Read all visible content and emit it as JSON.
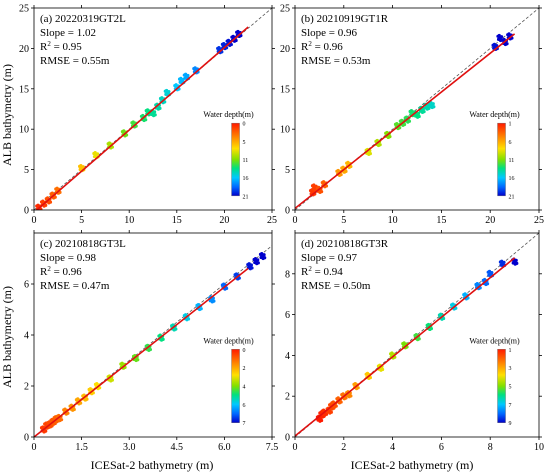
{
  "figure": {
    "xlabel": "ICESat-2 bathymetry (m)",
    "ylabel": "ALB bathymetry (m)"
  },
  "colors": {
    "fit_line": "#e01010",
    "identity_line": "#555555",
    "colormap": [
      "#0000cc",
      "#0066ff",
      "#00c8ff",
      "#00e080",
      "#80e000",
      "#ffe000",
      "#ff8000",
      "#ff1a00"
    ]
  },
  "chart_data": [
    {
      "type": "scatter",
      "panel_label": "(a) 20220319GT2L",
      "slope_text": "Slope = 1.02",
      "r2_prefix": "R",
      "r2_sup": "2",
      "r2_value": " = 0.95",
      "rmse_text": "RMSE = 0.55m",
      "xlim": [
        0,
        25
      ],
      "ylim": [
        0,
        25
      ],
      "xticks": [
        "0",
        "5",
        "10",
        "15",
        "20",
        "25"
      ],
      "yticks": [
        "0",
        "5",
        "10",
        "15",
        "20",
        "25"
      ],
      "fit": {
        "slope": 1.02,
        "intercept": -0.3
      },
      "legend_title": "Water depth(m)",
      "colorbar_ticks": [
        "0",
        "5",
        "11",
        "16",
        "21"
      ],
      "colorbar_range": [
        0,
        21
      ],
      "series": [
        {
          "x": [
            0.5,
            1.0,
            1.5,
            2.0,
            2.5,
            5.0,
            6.5,
            8.0,
            9.5,
            10.5,
            11.5,
            12.0,
            12.5,
            13.0,
            13.5,
            14.0,
            15.0,
            15.5,
            16.0,
            17.0,
            19.5,
            20.0,
            20.5,
            21.0,
            21.5
          ],
          "y": [
            0.3,
            0.8,
            1.2,
            1.8,
            2.4,
            5.2,
            6.8,
            8.0,
            9.5,
            10.6,
            11.4,
            12.1,
            12.0,
            12.8,
            13.6,
            14.5,
            15.2,
            16.0,
            16.5,
            17.3,
            19.8,
            20.3,
            20.7,
            21.2,
            21.8
          ]
        }
      ]
    },
    {
      "type": "scatter",
      "panel_label": "(b) 20210919GT1R",
      "slope_text": "Slope = 0.96",
      "r2_prefix": "R",
      "r2_sup": "2",
      "r2_value": " = 0.96",
      "rmse_text": "RMSE = 0.53m",
      "xlim": [
        0,
        25
      ],
      "ylim": [
        0,
        25
      ],
      "xticks": [
        "0",
        "5",
        "10",
        "15",
        "20",
        "25"
      ],
      "yticks": [
        "0",
        "5",
        "10",
        "15",
        "20",
        "25"
      ],
      "fit": {
        "slope": 0.96,
        "intercept": 0.2
      },
      "legend_title": "Water depth(m)",
      "colorbar_ticks": [
        "1",
        "6",
        "11",
        "16",
        "21"
      ],
      "colorbar_range": [
        1,
        21
      ],
      "series": [
        {
          "x": [
            1.8,
            2.0,
            2.5,
            3.0,
            4.5,
            5.0,
            5.5,
            7.5,
            8.5,
            9.5,
            10.5,
            11.0,
            11.5,
            12.0,
            12.5,
            13.0,
            13.5,
            14.0,
            20.5,
            21.0,
            21.5,
            22.0
          ],
          "y": [
            2.2,
            2.8,
            2.5,
            3.2,
            4.6,
            5.0,
            5.6,
            7.2,
            8.3,
            9.3,
            10.4,
            10.8,
            11.2,
            12.0,
            11.8,
            12.4,
            12.8,
            13.0,
            20.2,
            21.3,
            20.8,
            21.5
          ]
        }
      ]
    },
    {
      "type": "scatter",
      "panel_label": "(c) 20210818GT3L",
      "slope_text": "Slope = 0.98",
      "r2_prefix": "R",
      "r2_sup": "2",
      "r2_value": " = 0.96",
      "rmse_text": "RMSE = 0.47m",
      "xlim": [
        0,
        7.5
      ],
      "ylim": [
        0,
        8
      ],
      "xticks": [
        "0",
        "1.5",
        "3.0",
        "4.5",
        "6.0",
        "7.5"
      ],
      "yticks": [
        "0",
        "2",
        "4",
        "6"
      ],
      "ytick_values": [
        0,
        2,
        4,
        6
      ],
      "fit": {
        "slope": 0.98,
        "intercept": 0.0
      },
      "legend_title": "Water depth(m)",
      "colorbar_ticks": [
        "0",
        "2",
        "4",
        "6",
        "7"
      ],
      "colorbar_range": [
        0,
        7
      ],
      "series": [
        {
          "x": [
            0.3,
            0.4,
            0.5,
            0.6,
            0.7,
            0.8,
            1.0,
            1.2,
            1.4,
            1.6,
            1.8,
            2.0,
            2.4,
            2.8,
            3.2,
            3.6,
            4.0,
            4.4,
            4.8,
            5.2,
            5.6,
            6.0,
            6.4,
            6.8,
            7.0,
            7.2
          ],
          "y": [
            0.3,
            0.45,
            0.5,
            0.6,
            0.7,
            0.75,
            1.0,
            1.15,
            1.4,
            1.55,
            1.8,
            2.0,
            2.3,
            2.8,
            3.1,
            3.5,
            3.9,
            4.3,
            4.7,
            5.1,
            5.4,
            5.9,
            6.3,
            6.7,
            6.9,
            7.1
          ]
        }
      ]
    },
    {
      "type": "scatter",
      "panel_label": "(d) 20210818GT3R",
      "slope_text": "Slope = 0.97",
      "r2_prefix": "R",
      "r2_sup": "2",
      "r2_value": " = 0.94",
      "rmse_text": "RMSE = 0.50m",
      "xlim": [
        0,
        10
      ],
      "ylim": [
        0,
        10
      ],
      "xticks": [
        "0",
        "2",
        "4",
        "6",
        "8",
        "10"
      ],
      "yticks": [
        "0",
        "2",
        "4",
        "6",
        "8"
      ],
      "ytick_values": [
        0,
        2,
        4,
        6,
        8
      ],
      "fit": {
        "slope": 0.97,
        "intercept": 0.05
      },
      "legend_title": "Water depth(m)",
      "colorbar_ticks": [
        "1",
        "3",
        "5",
        "7",
        "9"
      ],
      "colorbar_range": [
        1,
        9
      ],
      "series": [
        {
          "x": [
            1.0,
            1.1,
            1.2,
            1.4,
            1.5,
            1.6,
            1.8,
            2.0,
            2.2,
            2.5,
            3.0,
            3.5,
            4.0,
            4.5,
            5.0,
            5.5,
            6.0,
            6.5,
            7.0,
            7.5,
            7.8,
            8.0,
            8.5,
            9.0
          ],
          "y": [
            0.9,
            1.1,
            1.2,
            1.3,
            1.5,
            1.6,
            1.8,
            2.0,
            2.1,
            2.5,
            3.0,
            3.4,
            4.0,
            4.5,
            4.9,
            5.4,
            5.9,
            6.4,
            6.9,
            7.4,
            7.6,
            8.0,
            8.5,
            8.6
          ]
        }
      ]
    }
  ]
}
